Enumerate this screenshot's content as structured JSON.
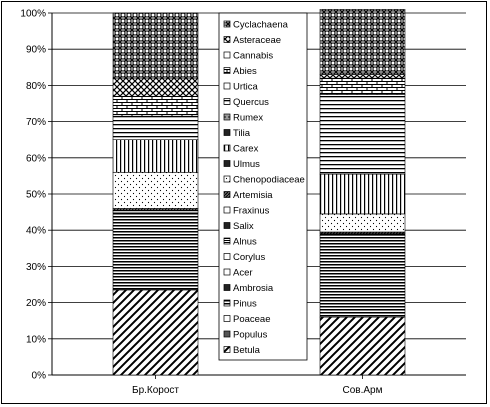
{
  "chart_data": {
    "type": "bar",
    "stacked": true,
    "percent": true,
    "categories": [
      "Бр.Корост",
      "Сов.Арм"
    ],
    "ylim": [
      0,
      100
    ],
    "yticks": [
      "0%",
      "10%",
      "20%",
      "30%",
      "40%",
      "50%",
      "60%",
      "70%",
      "80%",
      "90%",
      "100%"
    ],
    "grid": true,
    "legend_position": "center",
    "series": [
      {
        "name": "Betula",
        "values": [
          23.5,
          16
        ],
        "pattern": "diag-wide"
      },
      {
        "name": "Populus",
        "values": [
          0,
          0
        ],
        "pattern": "solid-gray"
      },
      {
        "name": "Poaceae",
        "values": [
          0,
          0
        ],
        "pattern": "white"
      },
      {
        "name": "Pinus",
        "values": [
          21.5,
          22.5
        ],
        "pattern": "hlines"
      },
      {
        "name": "Ambrosia",
        "values": [
          0,
          0
        ],
        "pattern": "dark"
      },
      {
        "name": "Acer",
        "values": [
          0,
          0
        ],
        "pattern": "white"
      },
      {
        "name": "Corylus",
        "values": [
          0,
          0
        ],
        "pattern": "white"
      },
      {
        "name": "Alnus",
        "values": [
          0.5,
          0.5
        ],
        "pattern": "hlines-dense"
      },
      {
        "name": "Salix",
        "values": [
          0,
          0
        ],
        "pattern": "dark"
      },
      {
        "name": "Fraxinus",
        "values": [
          0,
          0
        ],
        "pattern": "white"
      },
      {
        "name": "Artemisia",
        "values": [
          0.5,
          0.5
        ],
        "pattern": "diag-dark"
      },
      {
        "name": "Chenopodiaceae",
        "values": [
          10,
          5
        ],
        "pattern": "dots"
      },
      {
        "name": "Ulmus",
        "values": [
          0,
          0
        ],
        "pattern": "dark"
      },
      {
        "name": "Carex",
        "values": [
          9,
          11
        ],
        "pattern": "vlines"
      },
      {
        "name": "Tilia",
        "values": [
          0,
          0
        ],
        "pattern": "dark"
      },
      {
        "name": "Rumex",
        "values": [
          0,
          0
        ],
        "pattern": "gray"
      },
      {
        "name": "Quercus",
        "values": [
          6.5,
          22
        ],
        "pattern": "hlines-med"
      },
      {
        "name": "Urtica",
        "values": [
          0,
          0
        ],
        "pattern": "white"
      },
      {
        "name": "Abies",
        "values": [
          5.5,
          4.5
        ],
        "pattern": "brick"
      },
      {
        "name": "Cannabis",
        "values": [
          0,
          0
        ],
        "pattern": "white"
      },
      {
        "name": "Asteraceae",
        "values": [
          5,
          1
        ],
        "pattern": "weave"
      },
      {
        "name": "Cyclachaena",
        "values": [
          18,
          18
        ],
        "pattern": "dense-mix"
      }
    ]
  },
  "legend_order": [
    "Cyclachaena",
    "Asteraceae",
    "Cannabis",
    "Abies",
    "Urtica",
    "Quercus",
    "Rumex",
    "Tilia",
    "Carex",
    "Ulmus",
    "Chenopodiaceae",
    "Artemisia",
    "Fraxinus",
    "Salix",
    "Alnus",
    "Corylus",
    "Acer",
    "Ambrosia",
    "Pinus",
    "Poaceae",
    "Populus",
    "Betula"
  ],
  "colors": {
    "ink": "#000000",
    "background": "#ffffff",
    "grid": "#000000"
  }
}
